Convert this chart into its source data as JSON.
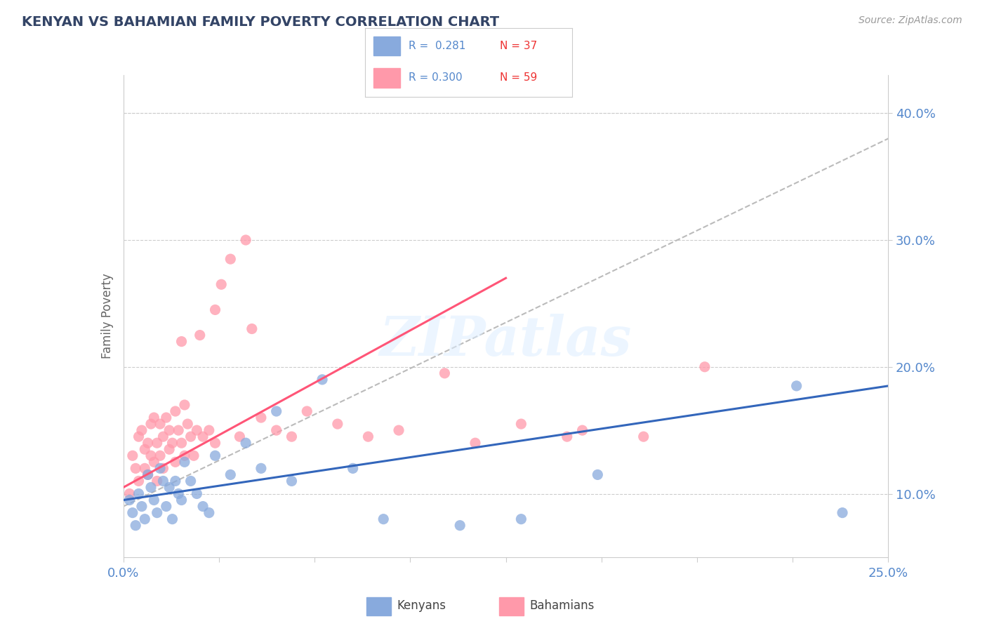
{
  "title": "KENYAN VS BAHAMIAN FAMILY POVERTY CORRELATION CHART",
  "source": "Source: ZipAtlas.com",
  "ylabel": "Family Poverty",
  "xlim": [
    0.0,
    25.0
  ],
  "ylim": [
    5.0,
    43.0
  ],
  "yticks": [
    10.0,
    20.0,
    30.0,
    40.0
  ],
  "xticks": [
    0.0,
    3.125,
    6.25,
    9.375,
    12.5,
    15.625,
    18.75,
    21.875,
    25.0
  ],
  "kenyan_color": "#88AADD",
  "bahamian_color": "#FF99AA",
  "kenyan_line_color": "#3366BB",
  "bahamian_line_color": "#FF5577",
  "dashed_line_color": "#BBBBBB",
  "legend_kenyan_R": "0.281",
  "legend_kenyan_N": "37",
  "legend_bahamian_R": "0.300",
  "legend_bahamian_N": "59",
  "background_color": "#FFFFFF",
  "grid_color": "#CCCCCC",
  "title_color": "#334466",
  "axis_label_color": "#5588CC",
  "kenyan_line_x0": 0.0,
  "kenyan_line_y0": 9.5,
  "kenyan_line_x1": 25.0,
  "kenyan_line_y1": 18.5,
  "bahamian_line_x0": 0.0,
  "bahamian_line_y0": 10.5,
  "bahamian_line_x1": 12.5,
  "bahamian_line_y1": 27.0,
  "dashed_line_x0": 0.0,
  "dashed_line_y0": 9.0,
  "dashed_line_x1": 25.0,
  "dashed_line_y1": 38.0,
  "kenyan_points_x": [
    0.2,
    0.3,
    0.4,
    0.5,
    0.6,
    0.7,
    0.8,
    0.9,
    1.0,
    1.1,
    1.2,
    1.3,
    1.4,
    1.5,
    1.6,
    1.7,
    1.8,
    1.9,
    2.0,
    2.2,
    2.4,
    2.6,
    2.8,
    3.0,
    3.5,
    4.0,
    4.5,
    5.0,
    5.5,
    6.5,
    7.5,
    8.5,
    11.0,
    13.0,
    15.5,
    22.0,
    23.5
  ],
  "kenyan_points_y": [
    9.5,
    8.5,
    7.5,
    10.0,
    9.0,
    8.0,
    11.5,
    10.5,
    9.5,
    8.5,
    12.0,
    11.0,
    9.0,
    10.5,
    8.0,
    11.0,
    10.0,
    9.5,
    12.5,
    11.0,
    10.0,
    9.0,
    8.5,
    13.0,
    11.5,
    14.0,
    12.0,
    16.5,
    11.0,
    19.0,
    12.0,
    8.0,
    7.5,
    8.0,
    11.5,
    18.5,
    8.5
  ],
  "bahamian_points_x": [
    0.2,
    0.3,
    0.4,
    0.5,
    0.5,
    0.6,
    0.7,
    0.7,
    0.8,
    0.8,
    0.9,
    0.9,
    1.0,
    1.0,
    1.1,
    1.1,
    1.2,
    1.2,
    1.3,
    1.3,
    1.4,
    1.5,
    1.5,
    1.6,
    1.7,
    1.7,
    1.8,
    1.9,
    1.9,
    2.0,
    2.0,
    2.1,
    2.2,
    2.3,
    2.4,
    2.5,
    2.6,
    2.8,
    3.0,
    3.0,
    3.2,
    3.5,
    3.8,
    4.0,
    4.2,
    4.5,
    5.0,
    5.5,
    6.0,
    7.0,
    8.0,
    9.0,
    10.5,
    11.5,
    13.0,
    14.5,
    15.0,
    17.0,
    19.0
  ],
  "bahamian_points_y": [
    10.0,
    13.0,
    12.0,
    14.5,
    11.0,
    15.0,
    13.5,
    12.0,
    14.0,
    11.5,
    13.0,
    15.5,
    16.0,
    12.5,
    14.0,
    11.0,
    15.5,
    13.0,
    14.5,
    12.0,
    16.0,
    15.0,
    13.5,
    14.0,
    16.5,
    12.5,
    15.0,
    14.0,
    22.0,
    17.0,
    13.0,
    15.5,
    14.5,
    13.0,
    15.0,
    22.5,
    14.5,
    15.0,
    24.5,
    14.0,
    26.5,
    28.5,
    14.5,
    30.0,
    23.0,
    16.0,
    15.0,
    14.5,
    16.5,
    15.5,
    14.5,
    15.0,
    19.5,
    14.0,
    15.5,
    14.5,
    15.0,
    14.5,
    20.0
  ]
}
